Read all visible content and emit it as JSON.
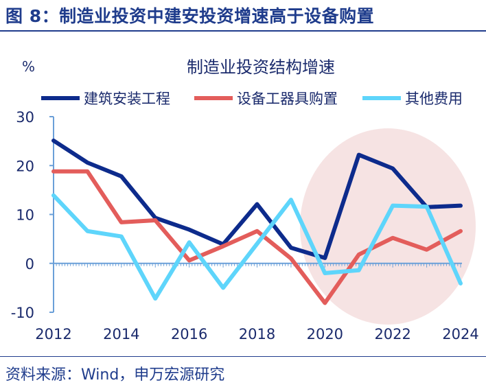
{
  "figure_title": "图 8：制造业投资中建安投资增速高于设备购置",
  "source": "资料来源：Wind，申万宏源研究",
  "chart_data": {
    "type": "line",
    "title": "制造业投资结构增速",
    "ylabel": "%",
    "ylim": [
      -10,
      30
    ],
    "yticks": [
      -10,
      0,
      10,
      20,
      30
    ],
    "xticks": [
      2012,
      2014,
      2016,
      2018,
      2020,
      2022,
      2024
    ],
    "x": [
      2012,
      2013,
      2014,
      2015,
      2016,
      2017,
      2018,
      2019,
      2020,
      2021,
      2022,
      2023,
      2024
    ],
    "legend": "top",
    "grid": false,
    "highlight": "circle over 2020-2024",
    "series": [
      {
        "name": "建筑安装工程",
        "color": "#0d2b8c",
        "values": [
          25.1,
          20.6,
          17.8,
          9.3,
          6.9,
          3.9,
          12.1,
          3.2,
          1.1,
          22.2,
          19.4,
          11.5,
          11.8
        ]
      },
      {
        "name": "设备工器具购置",
        "color": "#e35d5b",
        "values": [
          18.8,
          18.8,
          8.4,
          8.8,
          0.6,
          3.5,
          6.6,
          1.0,
          -8.1,
          1.8,
          5.2,
          2.8,
          6.6
        ]
      },
      {
        "name": "其他费用",
        "color": "#5ed5fb",
        "values": [
          13.9,
          6.6,
          5.5,
          -7.2,
          4.3,
          -5.0,
          4.0,
          13.0,
          -2.0,
          -1.4,
          11.8,
          11.6,
          -4.1
        ]
      }
    ]
  }
}
